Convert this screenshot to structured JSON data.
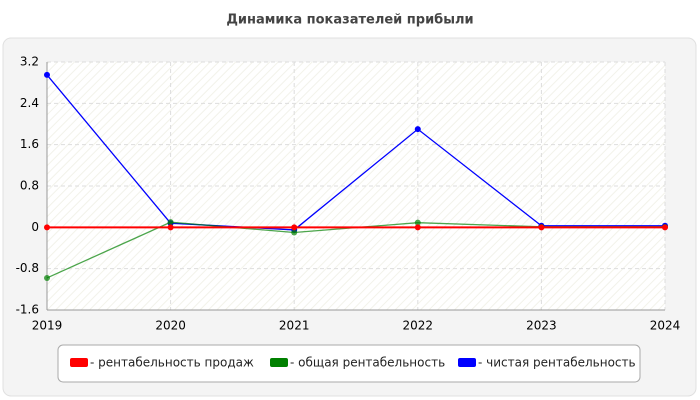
{
  "chart_data": {
    "type": "line",
    "title": "Динамика показателей прибыли",
    "x": [
      2019,
      2020,
      2021,
      2022,
      2023,
      2024
    ],
    "xlim": [
      2019,
      2024
    ],
    "xticks": [
      2019,
      2020,
      2021,
      2022,
      2023,
      2024
    ],
    "ylim": [
      -1.6,
      3.2
    ],
    "yticks": [
      -1.6,
      -0.8,
      0,
      0.8,
      1.6,
      2.4,
      3.2
    ],
    "grid": true,
    "legend": "bottom",
    "series": [
      {
        "name": "- рентабельность продаж",
        "color": "#ff0000",
        "values": [
          0,
          0,
          0,
          0,
          0,
          0
        ]
      },
      {
        "name": "- общая рентабельность",
        "color": "#008000",
        "values": [
          -0.98,
          0.1,
          -0.1,
          0.09,
          0.01,
          0.01
        ]
      },
      {
        "name": "- чистая рентабельность",
        "color": "#0000ff",
        "values": [
          2.95,
          0.08,
          -0.05,
          1.9,
          0.03,
          0.03
        ]
      }
    ]
  }
}
